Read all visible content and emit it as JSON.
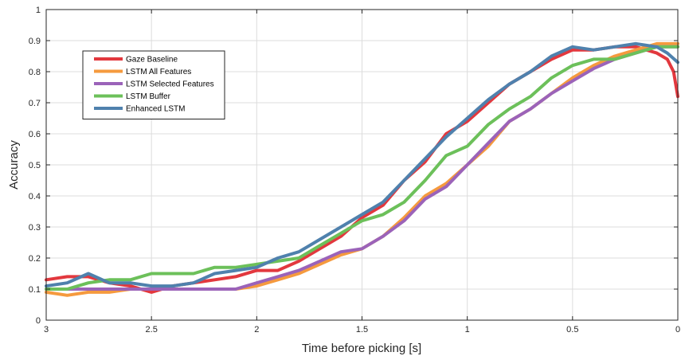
{
  "chart_data": {
    "type": "line",
    "title": "",
    "xlabel": "Time before picking [s]",
    "ylabel": "Accuracy",
    "xlim": [
      0,
      3
    ],
    "x_reversed": true,
    "ylim": [
      0,
      1
    ],
    "xticks": [
      3,
      2.5,
      2,
      1.5,
      1,
      0.5,
      0
    ],
    "xtick_labels": [
      "3",
      "2.5",
      "2",
      "1.5",
      "1",
      "0.5",
      "0"
    ],
    "yticks": [
      0,
      0.1,
      0.2,
      0.3,
      0.4,
      0.5,
      0.6,
      0.7,
      0.8,
      0.9,
      1
    ],
    "ytick_labels": [
      "0",
      "0.1",
      "0.2",
      "0.3",
      "0.4",
      "0.5",
      "0.6",
      "0.7",
      "0.8",
      "0.9",
      "1"
    ],
    "grid": true,
    "legend_position": "top-left",
    "series": [
      {
        "name": "Gaze Baseline",
        "color": "#e2383e",
        "x": [
          3,
          2.9,
          2.8,
          2.7,
          2.6,
          2.5,
          2.4,
          2.3,
          2.2,
          2.1,
          2.0,
          1.9,
          1.8,
          1.7,
          1.6,
          1.5,
          1.4,
          1.3,
          1.2,
          1.1,
          1.0,
          0.9,
          0.8,
          0.7,
          0.6,
          0.5,
          0.4,
          0.3,
          0.2,
          0.1,
          0.05,
          0.02,
          0
        ],
        "y": [
          0.13,
          0.14,
          0.14,
          0.12,
          0.11,
          0.09,
          0.11,
          0.12,
          0.13,
          0.14,
          0.16,
          0.16,
          0.19,
          0.23,
          0.27,
          0.33,
          0.37,
          0.45,
          0.51,
          0.6,
          0.64,
          0.7,
          0.76,
          0.8,
          0.84,
          0.87,
          0.87,
          0.88,
          0.88,
          0.86,
          0.84,
          0.8,
          0.72
        ]
      },
      {
        "name": "LSTM All Features",
        "color": "#f59a3e",
        "x": [
          3,
          2.9,
          2.8,
          2.7,
          2.6,
          2.5,
          2.4,
          2.3,
          2.2,
          2.1,
          2.0,
          1.9,
          1.8,
          1.7,
          1.6,
          1.5,
          1.4,
          1.3,
          1.2,
          1.1,
          1.0,
          0.9,
          0.8,
          0.7,
          0.6,
          0.5,
          0.4,
          0.3,
          0.2,
          0.1,
          0
        ],
        "y": [
          0.09,
          0.08,
          0.09,
          0.09,
          0.1,
          0.1,
          0.1,
          0.1,
          0.1,
          0.1,
          0.11,
          0.13,
          0.15,
          0.18,
          0.21,
          0.23,
          0.27,
          0.33,
          0.4,
          0.44,
          0.5,
          0.56,
          0.64,
          0.68,
          0.73,
          0.78,
          0.82,
          0.85,
          0.87,
          0.89,
          0.89
        ]
      },
      {
        "name": "LSTM Selected Features",
        "color": "#9b63b9",
        "x": [
          3,
          2.9,
          2.8,
          2.7,
          2.6,
          2.5,
          2.4,
          2.3,
          2.2,
          2.1,
          2.0,
          1.9,
          1.8,
          1.7,
          1.6,
          1.5,
          1.4,
          1.3,
          1.2,
          1.1,
          1.0,
          0.9,
          0.8,
          0.7,
          0.6,
          0.5,
          0.4,
          0.3,
          0.2,
          0.1,
          0
        ],
        "y": [
          0.1,
          0.1,
          0.1,
          0.1,
          0.1,
          0.1,
          0.1,
          0.1,
          0.1,
          0.1,
          0.12,
          0.14,
          0.16,
          0.19,
          0.22,
          0.23,
          0.27,
          0.32,
          0.39,
          0.43,
          0.5,
          0.57,
          0.64,
          0.68,
          0.73,
          0.77,
          0.81,
          0.84,
          0.86,
          0.88,
          0.88
        ]
      },
      {
        "name": "LSTM Buffer",
        "color": "#6cc05a",
        "x": [
          3,
          2.9,
          2.8,
          2.7,
          2.6,
          2.5,
          2.4,
          2.3,
          2.2,
          2.1,
          2.0,
          1.9,
          1.8,
          1.7,
          1.6,
          1.5,
          1.4,
          1.3,
          1.2,
          1.1,
          1.0,
          0.9,
          0.8,
          0.7,
          0.6,
          0.5,
          0.4,
          0.3,
          0.2,
          0.1,
          0
        ],
        "y": [
          0.1,
          0.1,
          0.12,
          0.13,
          0.13,
          0.15,
          0.15,
          0.15,
          0.17,
          0.17,
          0.18,
          0.19,
          0.2,
          0.24,
          0.28,
          0.32,
          0.34,
          0.38,
          0.45,
          0.53,
          0.56,
          0.63,
          0.68,
          0.72,
          0.78,
          0.82,
          0.84,
          0.84,
          0.86,
          0.88,
          0.88
        ]
      },
      {
        "name": "Enhanced LSTM",
        "color": "#4f81ad",
        "x": [
          3,
          2.9,
          2.8,
          2.7,
          2.6,
          2.5,
          2.4,
          2.3,
          2.2,
          2.1,
          2.0,
          1.9,
          1.8,
          1.7,
          1.6,
          1.5,
          1.4,
          1.3,
          1.2,
          1.1,
          1.0,
          0.9,
          0.8,
          0.7,
          0.6,
          0.5,
          0.4,
          0.3,
          0.2,
          0.1,
          0.05,
          0
        ],
        "y": [
          0.11,
          0.12,
          0.15,
          0.12,
          0.12,
          0.11,
          0.11,
          0.12,
          0.15,
          0.16,
          0.17,
          0.2,
          0.22,
          0.26,
          0.3,
          0.34,
          0.38,
          0.45,
          0.52,
          0.59,
          0.65,
          0.71,
          0.76,
          0.8,
          0.85,
          0.88,
          0.87,
          0.88,
          0.89,
          0.88,
          0.86,
          0.83
        ]
      }
    ]
  }
}
